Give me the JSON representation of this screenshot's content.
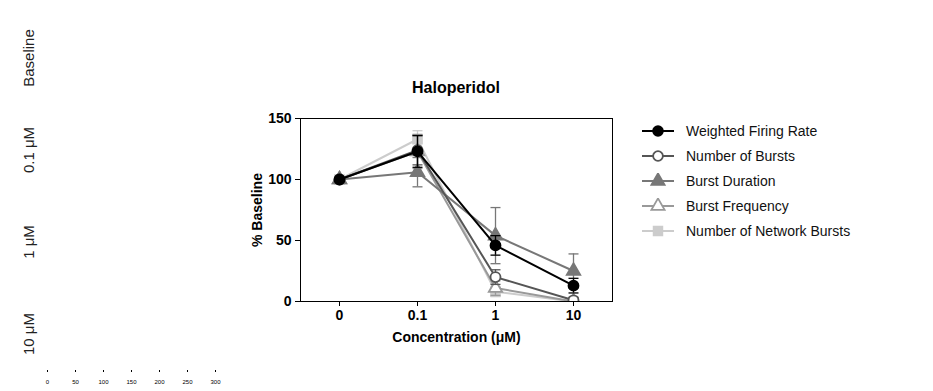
{
  "chart_data": [
    {
      "type": "raster",
      "panels": [
        "Baseline",
        "0.1 μM",
        "1 μM",
        "10 μM"
      ],
      "xlim": [
        0,
        300
      ],
      "xticks": [
        0,
        50,
        100,
        150,
        200,
        250,
        300
      ]
    },
    {
      "type": "line",
      "title": "Haloperidol",
      "x_label": "Concentration (μM)",
      "y_label": "% Baseline",
      "categories": [
        "0",
        "0.1",
        "1",
        "10"
      ],
      "ylim": [
        0,
        150
      ],
      "yticks": [
        0,
        50,
        100,
        150
      ],
      "legend": "right",
      "series": [
        {
          "name": "Weighted Firing Rate",
          "color": "#000000",
          "marker": "circle",
          "values": [
            100,
            123,
            46,
            13
          ],
          "errors": [
            0,
            13,
            8,
            6
          ]
        },
        {
          "name": "Number of Bursts",
          "color": "#555555",
          "marker": "circle-open",
          "values": [
            100,
            124,
            20,
            1
          ],
          "errors": [
            0,
            12,
            6,
            2
          ]
        },
        {
          "name": "Burst Duration",
          "color": "#777777",
          "marker": "triangle",
          "values": [
            100,
            106,
            54,
            25
          ],
          "errors": [
            0,
            12,
            23,
            14
          ]
        },
        {
          "name": "Burst Frequency",
          "color": "#999999",
          "marker": "triangle-open",
          "values": [
            100,
            123,
            11,
            0
          ],
          "errors": [
            0,
            14,
            6,
            1
          ]
        },
        {
          "name": "Number of Network Bursts",
          "color": "#cccccc",
          "marker": "square",
          "values": [
            100,
            133,
            8,
            0
          ],
          "errors": [
            0,
            7,
            4,
            1
          ]
        }
      ]
    }
  ]
}
